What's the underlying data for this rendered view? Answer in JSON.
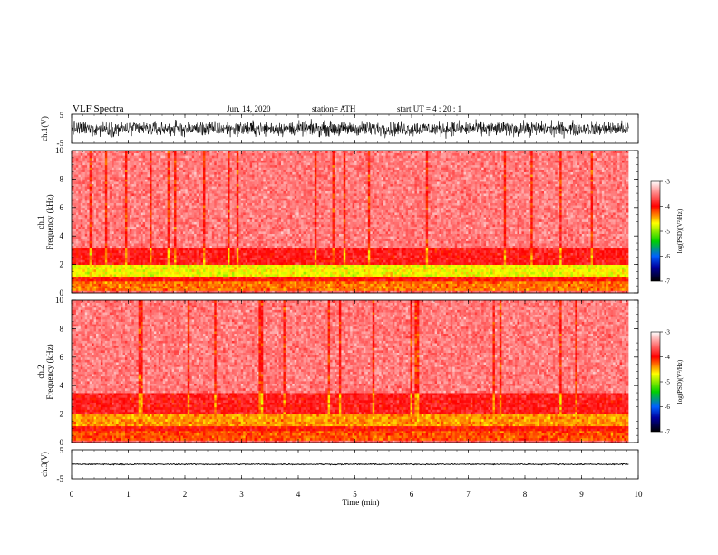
{
  "header": {
    "title": "VLF  Spectra",
    "date": "Jun. 14, 2020",
    "station": "station= ATH",
    "start": "start  UT  =   4  : 20 : 1"
  },
  "chart_data": [
    {
      "type": "line",
      "name": "ch1-waveform",
      "ylabel": "ch.1(V)",
      "ylim": [
        -5,
        5
      ],
      "yticks": [
        "5",
        "-5"
      ],
      "xlim": [
        0,
        10
      ],
      "duration_min": 9.83,
      "amplitude_v": [
        -3.2,
        3.2
      ]
    },
    {
      "type": "heatmap",
      "name": "ch1-spectrogram",
      "ylabel": "ch.1\nFrequency  (kHz)",
      "ylim": [
        0,
        10
      ],
      "yticks": [
        "0",
        "2",
        "4",
        "6",
        "8",
        "10"
      ],
      "xlim": [
        0,
        10
      ],
      "duration_min": 9.83,
      "bands_khz": [
        {
          "range": [
            0.0,
            0.2
          ],
          "level": -3.6
        },
        {
          "range": [
            0.2,
            0.9
          ],
          "level": -4.3
        },
        {
          "range": [
            0.9,
            1.2
          ],
          "level": -4.0
        },
        {
          "range": [
            1.2,
            2.0
          ],
          "level": -4.7
        },
        {
          "range": [
            2.0,
            3.2
          ],
          "level": -3.9
        },
        {
          "range": [
            3.2,
            10.0
          ],
          "level": -3.5
        }
      ],
      "colorbar": {
        "label": "log(PSD)(V²/Hz)",
        "min": -7,
        "max": -3,
        "ticks": [
          "-3",
          "-4",
          "-5",
          "-6",
          "-7"
        ]
      }
    },
    {
      "type": "heatmap",
      "name": "ch2-spectrogram",
      "ylabel": "ch.2\nFrequency  (kHz)",
      "ylim": [
        0,
        10
      ],
      "yticks": [
        "0",
        "2",
        "4",
        "6",
        "8",
        "10"
      ],
      "xlim": [
        0,
        10
      ],
      "duration_min": 9.83,
      "bands_khz": [
        {
          "range": [
            0.0,
            0.2
          ],
          "level": -3.6
        },
        {
          "range": [
            0.2,
            0.9
          ],
          "level": -4.2
        },
        {
          "range": [
            0.9,
            1.2
          ],
          "level": -4.0
        },
        {
          "range": [
            1.2,
            2.0
          ],
          "level": -4.4
        },
        {
          "range": [
            2.0,
            3.5
          ],
          "level": -3.9
        },
        {
          "range": [
            3.5,
            10.0
          ],
          "level": -3.5
        }
      ],
      "colorbar": {
        "label": "log(PSD)(V²/Hz)",
        "min": -7,
        "max": -3,
        "ticks": [
          "-3",
          "-4",
          "-5",
          "-6",
          "-7"
        ]
      }
    },
    {
      "type": "line",
      "name": "ch3-waveform",
      "ylabel": "ch.3(V)",
      "ylim": [
        -5,
        5
      ],
      "yticks": [
        "5",
        "-5"
      ],
      "xlim": [
        0,
        10
      ],
      "duration_min": 9.83,
      "amplitude_v": [
        -0.3,
        0.3
      ]
    }
  ],
  "xaxis": {
    "label": "Time  (min)",
    "ticks": [
      "0",
      "1",
      "2",
      "3",
      "4",
      "5",
      "6",
      "7",
      "8",
      "9",
      "10"
    ]
  }
}
